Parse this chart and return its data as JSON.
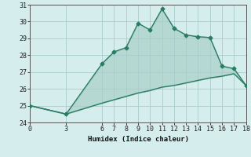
{
  "xlabel": "Humidex (Indice chaleur)",
  "line1_x": [
    0,
    3,
    6,
    7,
    8,
    9,
    10,
    11,
    12,
    13,
    14,
    15,
    16,
    17,
    18
  ],
  "line1_y": [
    25.0,
    24.5,
    27.5,
    28.2,
    28.45,
    29.9,
    29.5,
    30.75,
    29.6,
    29.2,
    29.1,
    29.05,
    27.35,
    27.2,
    26.2
  ],
  "line2_x": [
    0,
    3,
    6,
    7,
    8,
    9,
    10,
    11,
    12,
    13,
    14,
    15,
    16,
    17,
    18
  ],
  "line2_y": [
    25.0,
    24.5,
    25.15,
    25.35,
    25.55,
    25.75,
    25.9,
    26.1,
    26.2,
    26.35,
    26.5,
    26.65,
    26.75,
    26.9,
    26.2
  ],
  "color": "#2a7d62",
  "bg_color": "#d6eded",
  "grid_color": "#a8cccc",
  "xlim": [
    0,
    18
  ],
  "ylim": [
    24,
    31
  ],
  "xticks": [
    0,
    3,
    6,
    7,
    8,
    9,
    10,
    11,
    12,
    13,
    14,
    15,
    16,
    17,
    18
  ],
  "yticks": [
    24,
    25,
    26,
    27,
    28,
    29,
    30,
    31
  ],
  "marker": "D",
  "markersize": 2.5,
  "linewidth": 1.0
}
